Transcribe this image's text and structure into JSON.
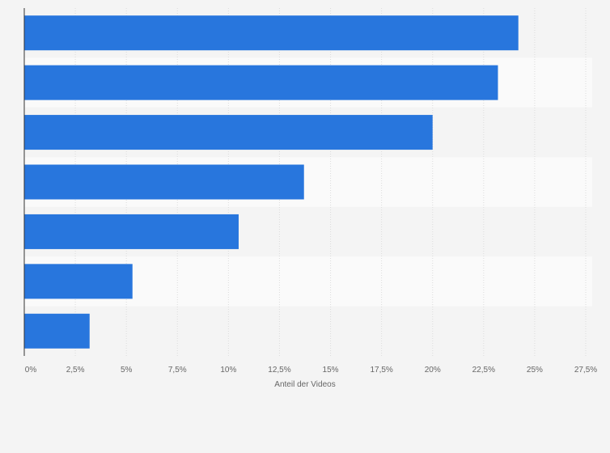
{
  "chart_data": {
    "type": "bar",
    "orientation": "horizontal",
    "categories": [
      "",
      "",
      "",
      "",
      "",
      "",
      ""
    ],
    "values": [
      24.2,
      23.2,
      20.0,
      13.7,
      10.5,
      5.3,
      3.2
    ],
    "title": "",
    "xlabel": "Anteil der Videos",
    "ylabel": "",
    "xlim": [
      0,
      27.5
    ],
    "x_ticks": [
      0,
      2.5,
      5,
      7.5,
      10,
      12.5,
      15,
      17.5,
      20,
      22.5,
      25,
      27.5
    ],
    "x_tick_labels": [
      "0%",
      "2,5%",
      "5%",
      "7,5%",
      "10%",
      "12,5%",
      "15%",
      "17,5%",
      "20%",
      "22,5%",
      "25%",
      "27,5%"
    ],
    "grid": "vertical",
    "legend": "none",
    "colors": {
      "bar": "#2876dd",
      "band_light": "#fafafa",
      "band_dark": "#f4f4f4",
      "grid": "#dcdcdc",
      "axis": "#333333",
      "text": "#666666"
    }
  }
}
